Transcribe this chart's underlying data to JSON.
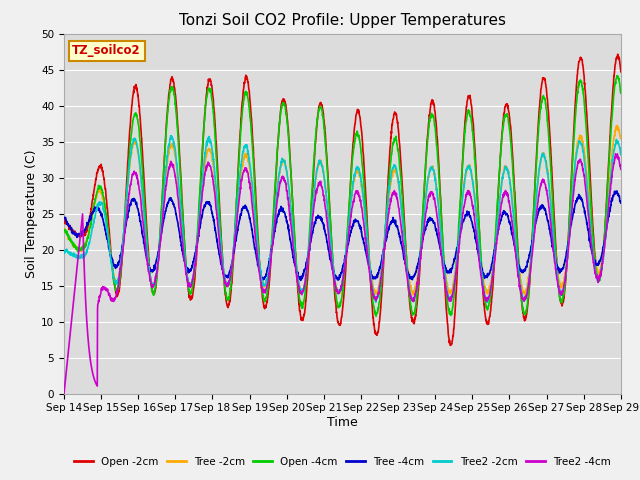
{
  "title": "Tonzi Soil CO2 Profile: Upper Temperatures",
  "xlabel": "Time",
  "ylabel": "Soil Temperature (C)",
  "ylim": [
    0,
    50
  ],
  "xlim": [
    0,
    15
  ],
  "bg_color": "#dcdcdc",
  "fig_facecolor": "#f0f0f0",
  "label_box_text": "TZ_soilco2",
  "label_box_facecolor": "#ffffcc",
  "label_box_edgecolor": "#cc8800",
  "series": {
    "Open -2cm": {
      "color": "#dd0000",
      "lw": 1.2
    },
    "Tree -2cm": {
      "color": "#ffaa00",
      "lw": 1.2
    },
    "Open -4cm": {
      "color": "#00cc00",
      "lw": 1.2
    },
    "Tree -4cm": {
      "color": "#0000cc",
      "lw": 1.2
    },
    "Tree2 -2cm": {
      "color": "#00cccc",
      "lw": 1.2
    },
    "Tree2 -4cm": {
      "color": "#cc00cc",
      "lw": 1.2
    }
  },
  "xtick_labels": [
    "Sep 14",
    "Sep 15",
    "Sep 16",
    "Sep 17",
    "Sep 18",
    "Sep 19",
    "Sep 20",
    "Sep 21",
    "Sep 22",
    "Sep 23",
    "Sep 24",
    "Sep 25",
    "Sep 26",
    "Sep 27",
    "Sep 28",
    "Sep 29"
  ],
  "ytick_vals": [
    0,
    5,
    10,
    15,
    20,
    25,
    30,
    35,
    40,
    45,
    50
  ],
  "grid_color": "#ffffff",
  "title_fontsize": 11,
  "axis_label_fontsize": 9,
  "tick_fontsize": 7.5
}
